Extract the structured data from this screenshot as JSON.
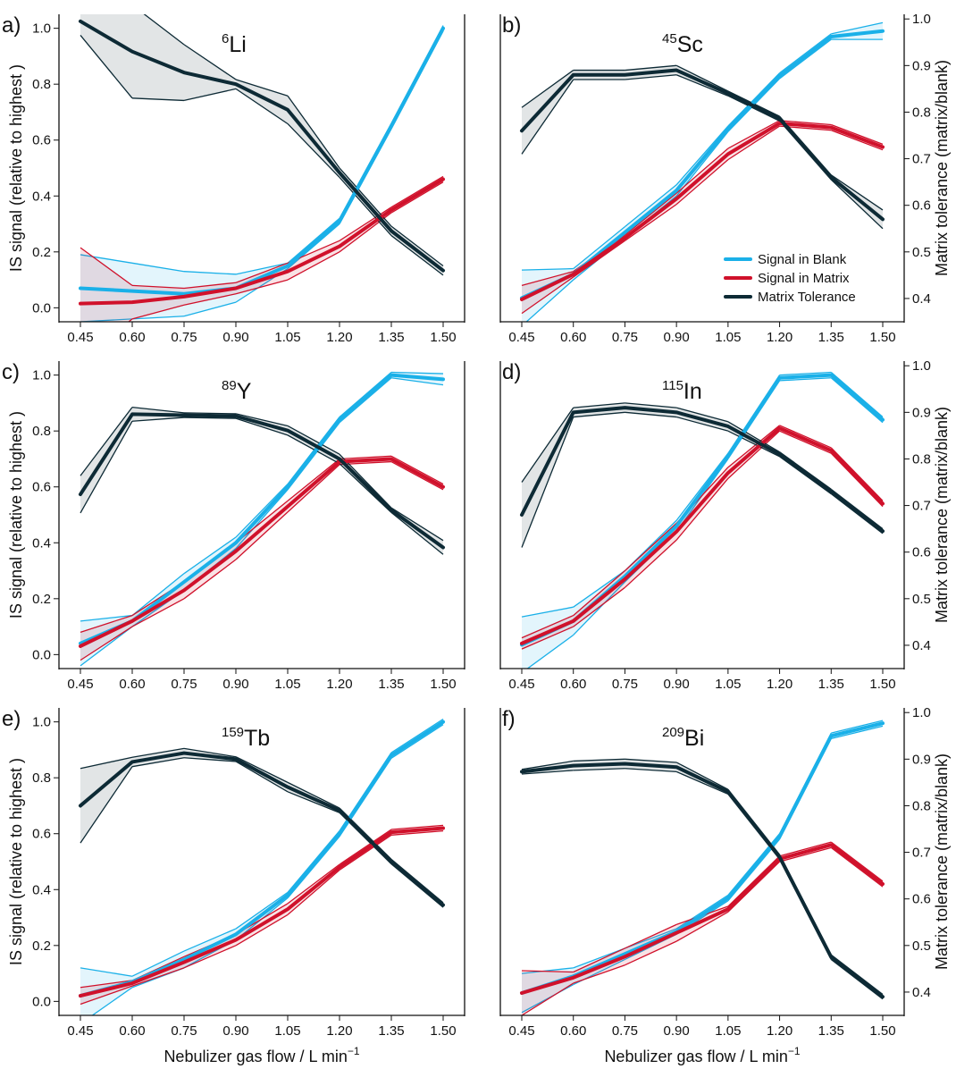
{
  "chart_data": [
    {
      "type": "line",
      "label": "a)",
      "title": {
        "sup": "6",
        "text": "Li"
      },
      "categories": [
        "0.45",
        "0.60",
        "0.75",
        "0.90",
        "1.05",
        "1.20",
        "1.35",
        "1.50"
      ],
      "ylim": [
        -0.05,
        1.05
      ],
      "y2lim": [
        0.35,
        1.01
      ],
      "yticks": [
        {
          "value": 0,
          "label": "0.0"
        },
        0.2,
        0.4,
        0.6,
        0.8,
        {
          "value": 1,
          "label": "1.0"
        }
      ],
      "ylabel": "IS signal (relative to highest )",
      "series": [
        {
          "name": "Signal in Blank",
          "color": "#1ab0e8",
          "values": [
            0.07,
            0.06,
            0.05,
            0.07,
            0.15,
            0.31,
            0.65,
            1.0
          ],
          "errors": [
            0.12,
            0.1,
            0.08,
            0.05,
            0.01,
            0.01,
            0.01,
            0.01
          ]
        },
        {
          "name": "Signal in Matrix",
          "color": "#d0112b",
          "values": [
            0.015,
            0.02,
            0.04,
            0.07,
            0.13,
            0.22,
            0.35,
            0.46
          ],
          "errors": [
            0.2,
            0.06,
            0.03,
            0.02,
            0.03,
            0.02,
            0.01,
            0.01
          ]
        },
        {
          "name": "Matrix Tolerance",
          "color": "#0d2a35",
          "axis": "y2",
          "values": [
            0.995,
            0.93,
            0.885,
            0.86,
            0.805,
            0.67,
            0.545,
            0.46
          ],
          "errors": [
            0.03,
            0.1,
            0.06,
            0.01,
            0.03,
            0.01,
            0.01,
            0.01
          ]
        }
      ]
    },
    {
      "type": "line",
      "label": "b)",
      "title": {
        "sup": "45",
        "text": "Sc"
      },
      "categories": [
        "0.45",
        "0.60",
        "0.75",
        "0.90",
        "1.05",
        "1.20",
        "1.35",
        "1.50"
      ],
      "ylim": [
        -0.05,
        1.05
      ],
      "y2lim": [
        0.35,
        1.01
      ],
      "y2ticks": [
        0.4,
        0.5,
        0.6,
        0.7,
        0.8,
        0.9,
        {
          "value": 1,
          "label": "1.0"
        }
      ],
      "y2label": "Matrix tolerance (matrix/blank)",
      "legend": "lower right",
      "series": [
        {
          "name": "Signal in Blank",
          "color": "#1ab0e8",
          "values": [
            0.035,
            0.12,
            0.27,
            0.42,
            0.64,
            0.83,
            0.97,
            0.99
          ],
          "errors": [
            0.1,
            0.02,
            0.02,
            0.02,
            0.01,
            0.01,
            0.01,
            0.03
          ]
        },
        {
          "name": "Signal in Matrix",
          "color": "#d0112b",
          "values": [
            0.03,
            0.12,
            0.25,
            0.39,
            0.55,
            0.66,
            0.645,
            0.575
          ],
          "errors": [
            0.05,
            0.01,
            0.01,
            0.02,
            0.02,
            0.01,
            0.01,
            0.01
          ]
        },
        {
          "name": "Matrix Tolerance",
          "color": "#0d2a35",
          "axis": "y2",
          "values": [
            0.76,
            0.88,
            0.88,
            0.89,
            0.84,
            0.786,
            0.66,
            0.57
          ],
          "errors": [
            0.05,
            0.01,
            0.01,
            0.01,
            0.005,
            0.005,
            0.005,
            0.02
          ]
        }
      ]
    },
    {
      "type": "line",
      "label": "c)",
      "title": {
        "sup": "89",
        "text": "Y"
      },
      "categories": [
        "0.45",
        "0.60",
        "0.75",
        "0.90",
        "1.05",
        "1.20",
        "1.35",
        "1.50"
      ],
      "ylim": [
        -0.05,
        1.05
      ],
      "y2lim": [
        0.35,
        1.01
      ],
      "yticks": [
        {
          "value": 0,
          "label": "0.0"
        },
        0.2,
        0.4,
        0.6,
        0.8,
        {
          "value": 1,
          "label": "1.0"
        }
      ],
      "ylabel": "IS signal (relative to highest )",
      "series": [
        {
          "name": "Signal in Blank",
          "color": "#1ab0e8",
          "values": [
            0.04,
            0.12,
            0.26,
            0.4,
            0.6,
            0.84,
            1.0,
            0.985
          ],
          "errors": [
            0.08,
            0.02,
            0.03,
            0.02,
            0.01,
            0.01,
            0.01,
            0.02
          ]
        },
        {
          "name": "Signal in Matrix",
          "color": "#d0112b",
          "values": [
            0.03,
            0.12,
            0.23,
            0.37,
            0.53,
            0.69,
            0.7,
            0.6
          ],
          "errors": [
            0.05,
            0.02,
            0.03,
            0.03,
            0.02,
            0.01,
            0.01,
            0.01
          ]
        },
        {
          "name": "Matrix Tolerance",
          "color": "#0d2a35",
          "axis": "y2",
          "values": [
            0.724,
            0.896,
            0.894,
            0.892,
            0.861,
            0.8,
            0.69,
            0.61
          ],
          "errors": [
            0.04,
            0.015,
            0.005,
            0.005,
            0.01,
            0.01,
            0.005,
            0.015
          ]
        }
      ]
    },
    {
      "type": "line",
      "label": "d)",
      "title": {
        "sup": "115",
        "text": "In"
      },
      "categories": [
        "0.45",
        "0.60",
        "0.75",
        "0.90",
        "1.05",
        "1.20",
        "1.35",
        "1.50"
      ],
      "ylim": [
        -0.05,
        1.05
      ],
      "y2lim": [
        0.35,
        1.01
      ],
      "y2ticks": [
        0.4,
        0.5,
        0.6,
        0.7,
        0.8,
        0.9,
        {
          "value": 1,
          "label": "1.0"
        }
      ],
      "y2label": "Matrix tolerance (matrix/blank)",
      "series": [
        {
          "name": "Signal in Blank",
          "color": "#1ab0e8",
          "values": [
            0.035,
            0.12,
            0.28,
            0.46,
            0.71,
            0.99,
            1.0,
            0.84
          ],
          "errors": [
            0.1,
            0.05,
            0.02,
            0.02,
            0.01,
            0.01,
            0.01,
            0.01
          ]
        },
        {
          "name": "Signal in Matrix",
          "color": "#d0112b",
          "values": [
            0.04,
            0.12,
            0.27,
            0.44,
            0.65,
            0.81,
            0.73,
            0.54
          ],
          "errors": [
            0.02,
            0.02,
            0.03,
            0.03,
            0.02,
            0.01,
            0.01,
            0.01
          ]
        },
        {
          "name": "Matrix Tolerance",
          "color": "#0d2a35",
          "axis": "y2",
          "values": [
            0.68,
            0.9,
            0.91,
            0.9,
            0.87,
            0.81,
            0.73,
            0.645
          ],
          "errors": [
            0.07,
            0.01,
            0.01,
            0.01,
            0.01,
            0.005,
            0.005,
            0.005
          ]
        }
      ]
    },
    {
      "type": "line",
      "label": "e)",
      "title": {
        "sup": "159",
        "text": "Tb"
      },
      "categories": [
        "0.45",
        "0.60",
        "0.75",
        "0.90",
        "1.05",
        "1.20",
        "1.35",
        "1.50"
      ],
      "ylim": [
        -0.05,
        1.05
      ],
      "y2lim": [
        0.35,
        1.01
      ],
      "yticks": [
        {
          "value": 0,
          "label": "0.0"
        },
        0.2,
        0.4,
        0.6,
        0.8,
        {
          "value": 1,
          "label": "1.0"
        }
      ],
      "ylabel": "IS signal (relative to highest )",
      "xlabel": {
        "text": "Nebulizer gas flow / L min",
        "sup": "−1"
      },
      "series": [
        {
          "name": "Signal in Blank",
          "color": "#1ab0e8",
          "values": [
            0.02,
            0.07,
            0.15,
            0.24,
            0.38,
            0.6,
            0.88,
            1.0
          ],
          "errors": [
            0.1,
            0.02,
            0.03,
            0.02,
            0.01,
            0.01,
            0.01,
            0.01
          ]
        },
        {
          "name": "Signal in Matrix",
          "color": "#d0112b",
          "values": [
            0.02,
            0.065,
            0.14,
            0.22,
            0.33,
            0.48,
            0.605,
            0.62
          ],
          "errors": [
            0.03,
            0.01,
            0.02,
            0.02,
            0.02,
            0.01,
            0.01,
            0.01
          ]
        },
        {
          "name": "Matrix Tolerance",
          "color": "#0d2a35",
          "axis": "y2",
          "values": [
            0.8,
            0.894,
            0.913,
            0.9,
            0.84,
            0.79,
            0.68,
            0.587
          ],
          "errors": [
            0.08,
            0.01,
            0.01,
            0.005,
            0.01,
            0.005,
            0.005,
            0.005
          ]
        }
      ]
    },
    {
      "type": "line",
      "label": "f)",
      "title": {
        "sup": "209",
        "text": "Bi"
      },
      "categories": [
        "0.45",
        "0.60",
        "0.75",
        "0.90",
        "1.05",
        "1.20",
        "1.35",
        "1.50"
      ],
      "ylim": [
        -0.05,
        1.05
      ],
      "y2lim": [
        0.35,
        1.01
      ],
      "y2ticks": [
        0.4,
        0.5,
        0.6,
        0.7,
        0.8,
        0.9,
        {
          "value": 1,
          "label": "1.0"
        }
      ],
      "y2label": "Matrix tolerance (matrix/blank)",
      "xlabel": {
        "text": "Nebulizer gas flow / L min",
        "sup": "−1"
      },
      "series": [
        {
          "name": "Signal in Blank",
          "color": "#1ab0e8",
          "values": [
            0.03,
            0.09,
            0.17,
            0.25,
            0.37,
            0.59,
            0.95,
            0.995
          ],
          "errors": [
            0.07,
            0.03,
            0.02,
            0.01,
            0.01,
            0.01,
            0.01,
            0.01
          ]
        },
        {
          "name": "Signal in Matrix",
          "color": "#d0112b",
          "values": [
            0.03,
            0.085,
            0.16,
            0.245,
            0.33,
            0.51,
            0.56,
            0.42
          ],
          "errors": [
            0.08,
            0.02,
            0.03,
            0.03,
            0.01,
            0.01,
            0.01,
            0.01
          ]
        },
        {
          "name": "Matrix Tolerance",
          "color": "#0d2a35",
          "axis": "y2",
          "values": [
            0.873,
            0.886,
            0.89,
            0.883,
            0.83,
            0.69,
            0.475,
            0.39
          ],
          "errors": [
            0.005,
            0.01,
            0.01,
            0.01,
            0.005,
            0.005,
            0.005,
            0.005
          ]
        }
      ]
    }
  ]
}
